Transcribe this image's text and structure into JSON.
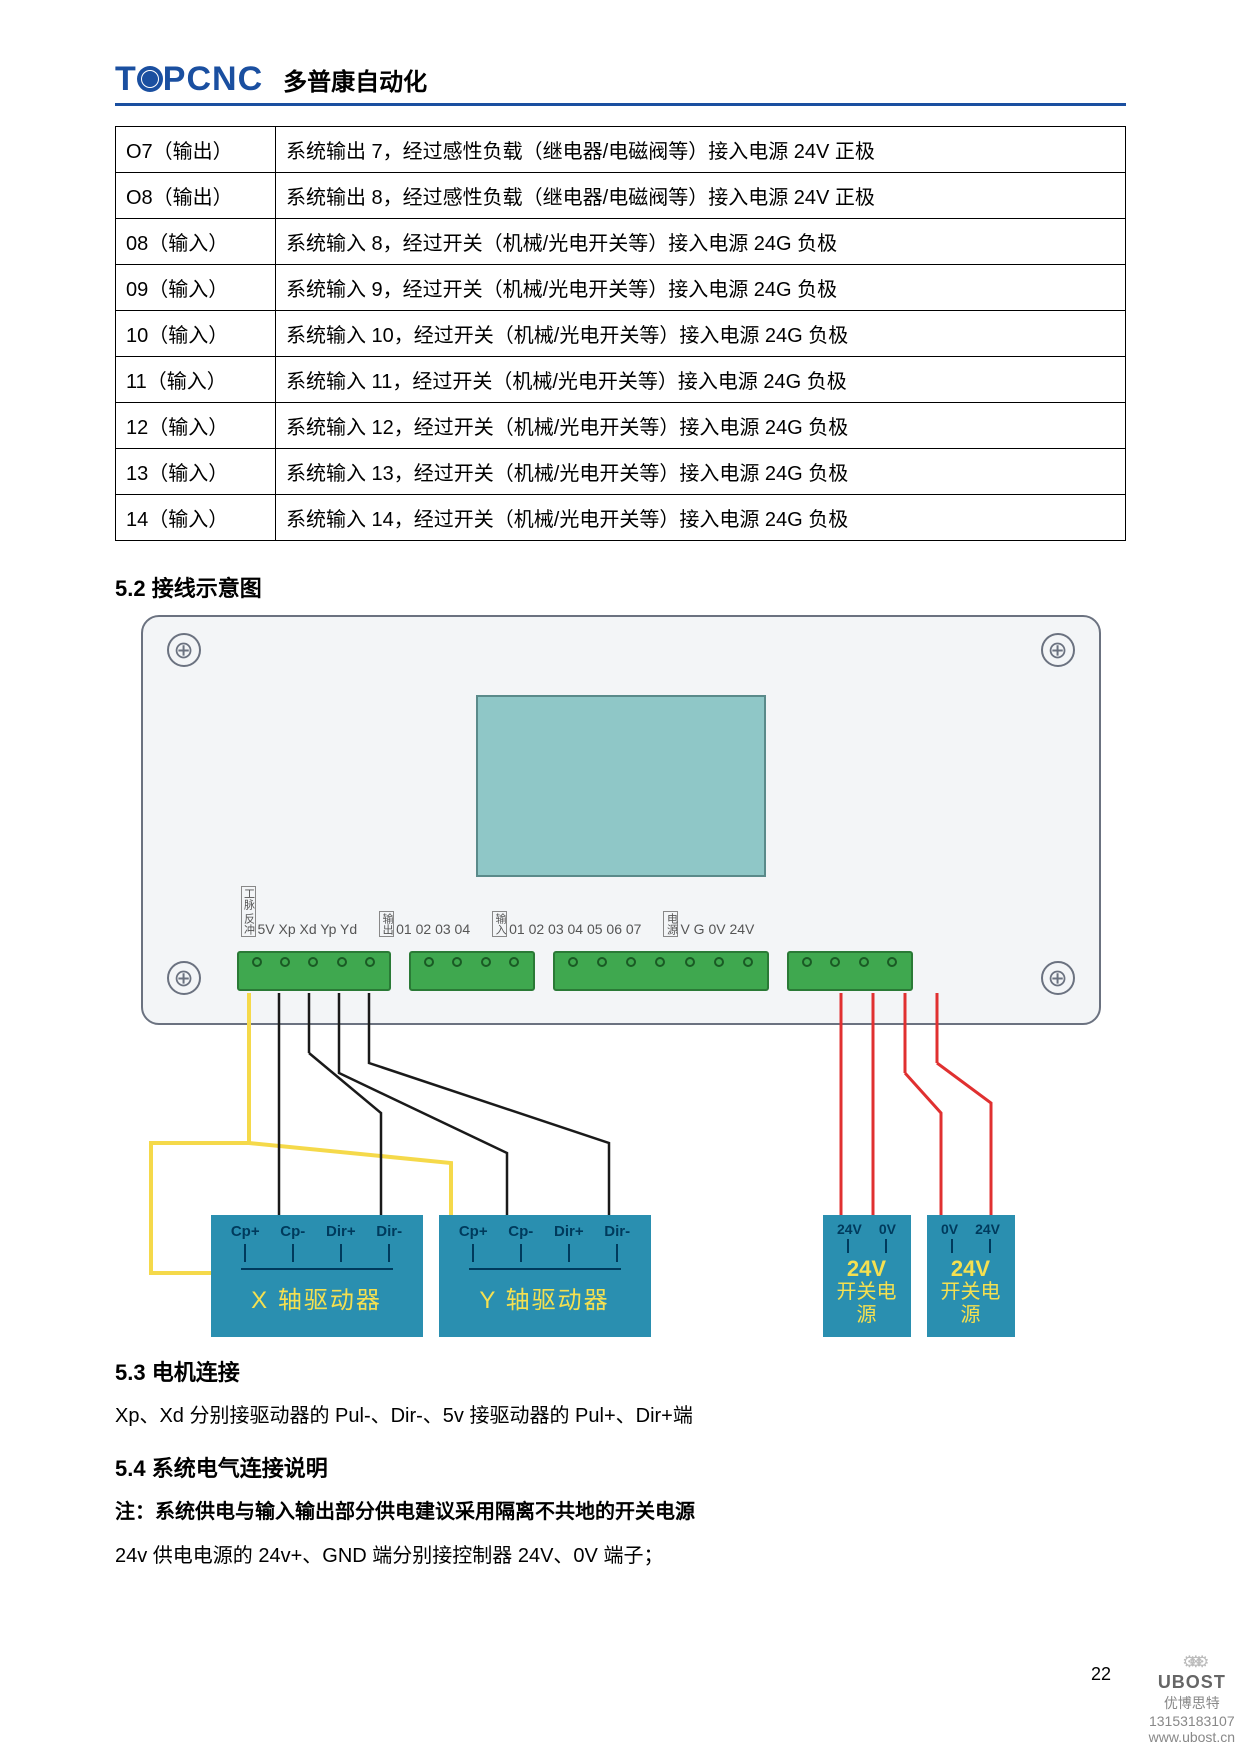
{
  "header": {
    "logo_prefix": "T",
    "logo_suffix": "PCNC",
    "subtitle": "多普康自动化"
  },
  "io_table": {
    "rows": [
      {
        "port": "O7（输出）",
        "desc": "系统输出 7，经过感性负载（继电器/电磁阀等）接入电源 24V 正极"
      },
      {
        "port": "O8（输出）",
        "desc": "系统输出 8，经过感性负载（继电器/电磁阀等）接入电源 24V 正极"
      },
      {
        "port": "08（输入）",
        "desc": "系统输入 8，经过开关（机械/光电开关等）接入电源 24G 负极"
      },
      {
        "port": "09（输入）",
        "desc": "系统输入 9，经过开关（机械/光电开关等）接入电源 24G 负极"
      },
      {
        "port": "10（输入）",
        "desc": "系统输入 10，经过开关（机械/光电开关等）接入电源 24G 负极"
      },
      {
        "port": "11（输入）",
        "desc": "系统输入 11，经过开关（机械/光电开关等）接入电源 24G 负极"
      },
      {
        "port": "12（输入）",
        "desc": "系统输入 12，经过开关（机械/光电开关等）接入电源 24G 负极"
      },
      {
        "port": "13（输入）",
        "desc": "系统输入 13，经过开关（机械/光电开关等）接入电源 24G 负极"
      },
      {
        "port": "14（输入）",
        "desc": "系统输入 14，经过开关（机械/光电开关等）接入电源 24G 负极"
      }
    ]
  },
  "sections": {
    "s52": "5.2 接线示意图",
    "s53": "5.3 电机连接",
    "s53_body": "Xp、Xd 分别接驱动器的 Pul-、Dir-、5v 接驱动器的 Pul+、Dir+端",
    "s54": "5.4 系统电气连接说明",
    "s54_note": "注：系统供电与输入输出部分供电建议采用隔离不共地的开关电源",
    "s54_body": "24v 供电电源的 24v+、GND 端分别接控制器 24V、0V 端子；"
  },
  "diagram": {
    "panel": {
      "bg": "#f3f5f7",
      "border": "#6b7280",
      "lcd_color": "#8fc7c7",
      "terminal_color": "#3fa84f"
    },
    "label_groups": {
      "g1_prefix": "工脉\n反冲",
      "g1": "5V Xp Xd Yp Yd",
      "g2_prefix": "输出",
      "g2": "01 02 03 04",
      "g3_prefix": "输入",
      "g3": "01 02 03 04 05 06 07",
      "g4_prefix": "电源",
      "g4": "V  G  0V 24V"
    },
    "terminal_pins": {
      "t1": 5,
      "t2": 4,
      "t3": 7,
      "t4": 4
    },
    "driver_labels": [
      "Cp+",
      "Cp-",
      "Dir+",
      "Dir-"
    ],
    "driver_x": "X 轴驱动器",
    "driver_y": "Y 轴驱动器",
    "psu_labels_a": [
      "24V",
      "0V"
    ],
    "psu_labels_b": [
      "0V",
      "24V"
    ],
    "psu_voltage": "24V",
    "psu_name": "开关电源",
    "colors": {
      "wire_yellow": "#f5d94a",
      "wire_black": "#1a1a1a",
      "wire_red": "#e03030",
      "module_bg": "#2a8fb0",
      "module_text": "#f5e050",
      "module_dark": "#003a5c"
    }
  },
  "page_number": "22",
  "watermark": {
    "brand": "UBOST",
    "sub": "优博思特",
    "phone": "13153183107",
    "url": "www.ubost.cn"
  }
}
